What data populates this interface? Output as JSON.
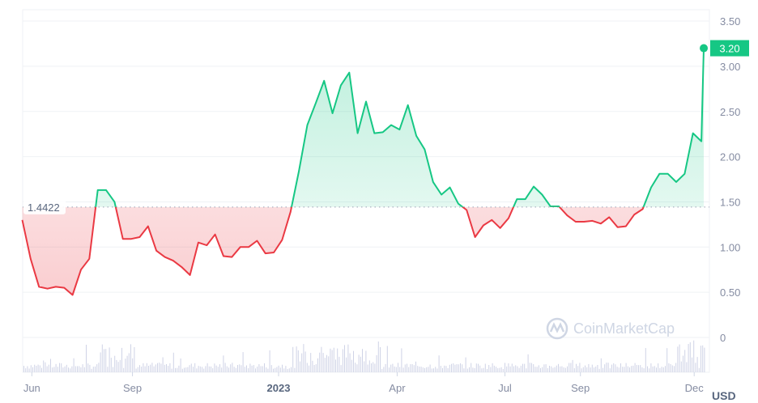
{
  "chart_data": {
    "type": "line",
    "title": "",
    "xlabel": "",
    "ylabel": "",
    "unit_label": "USD",
    "ylim": [
      0,
      3.5
    ],
    "y_ticks": [
      "0",
      "0.50",
      "1.00",
      "1.50",
      "2.00",
      "2.50",
      "3.00",
      "3.50"
    ],
    "x_ticks": [
      {
        "label": "Jun",
        "date": "2022-06-09",
        "bold": false
      },
      {
        "label": "Sep",
        "date": "2022-09-01",
        "bold": false
      },
      {
        "label": "2023",
        "date": "2023-01-01",
        "bold": true
      },
      {
        "label": "Apr",
        "date": "2023-04-10",
        "bold": false
      },
      {
        "label": "Jul",
        "date": "2023-07-09",
        "bold": false
      },
      {
        "label": "Sep",
        "date": "2023-09-10",
        "bold": false
      },
      {
        "label": "Dec",
        "date": "2023-12-14",
        "bold": false
      }
    ],
    "grid": true,
    "baseline": {
      "value": 1.4422,
      "label": "1.4422"
    },
    "current_price": {
      "value": 3.2,
      "label": "3.20"
    },
    "colors": {
      "up": "#16c784",
      "down": "#ea3943",
      "grid": "#eff2f5",
      "axis_text": "#858ca2",
      "volume": "#cfd3e6"
    },
    "watermark": "CoinMarketCap",
    "series": [
      {
        "x": [
          "2022-06-01",
          "2022-06-08",
          "2022-06-15",
          "2022-06-22",
          "2022-06-29",
          "2022-07-06",
          "2022-07-13",
          "2022-07-20",
          "2022-07-27",
          "2022-08-03",
          "2022-08-10",
          "2022-08-17",
          "2022-08-24",
          "2022-08-31",
          "2022-09-07",
          "2022-09-14",
          "2022-09-21",
          "2022-09-28",
          "2022-10-05",
          "2022-10-12",
          "2022-10-19",
          "2022-10-26",
          "2022-11-02",
          "2022-11-09",
          "2022-11-16",
          "2022-11-23",
          "2022-11-30",
          "2022-12-07",
          "2022-12-14",
          "2022-12-21",
          "2022-12-28",
          "2023-01-04",
          "2023-01-11",
          "2023-01-18",
          "2023-01-25",
          "2023-02-01",
          "2023-02-08",
          "2023-02-15",
          "2023-02-22",
          "2023-03-01",
          "2023-03-08",
          "2023-03-15",
          "2023-03-22",
          "2023-03-29",
          "2023-04-05",
          "2023-04-12",
          "2023-04-19",
          "2023-04-26",
          "2023-05-03",
          "2023-05-10",
          "2023-05-17",
          "2023-05-24",
          "2023-05-31",
          "2023-06-07",
          "2023-06-14",
          "2023-06-21",
          "2023-06-28",
          "2023-07-05",
          "2023-07-12",
          "2023-07-19",
          "2023-07-26",
          "2023-08-02",
          "2023-08-09",
          "2023-08-16",
          "2023-08-23",
          "2023-08-30",
          "2023-09-06",
          "2023-09-13",
          "2023-09-20",
          "2023-09-27",
          "2023-10-04",
          "2023-10-11",
          "2023-10-18",
          "2023-10-25",
          "2023-11-01",
          "2023-11-08",
          "2023-11-15",
          "2023-11-22",
          "2023-11-29",
          "2023-12-06",
          "2023-12-13",
          "2023-12-20",
          "2023-12-22"
        ],
        "y": [
          1.3,
          0.87,
          0.56,
          0.54,
          0.56,
          0.55,
          0.47,
          0.75,
          0.87,
          1.63,
          1.63,
          1.5,
          1.09,
          1.09,
          1.11,
          1.23,
          0.96,
          0.89,
          0.85,
          0.78,
          0.69,
          1.05,
          1.02,
          1.14,
          0.9,
          0.89,
          1.0,
          1.0,
          1.07,
          0.93,
          0.94,
          1.08,
          1.39,
          1.84,
          2.35,
          2.59,
          2.84,
          2.48,
          2.79,
          2.93,
          2.26,
          2.61,
          2.26,
          2.27,
          2.35,
          2.3,
          2.57,
          2.23,
          2.08,
          1.72,
          1.58,
          1.66,
          1.48,
          1.41,
          1.11,
          1.24,
          1.3,
          1.21,
          1.32,
          1.53,
          1.53,
          1.67,
          1.58,
          1.45,
          1.45,
          1.35,
          1.28,
          1.28,
          1.29,
          1.26,
          1.33,
          1.22,
          1.23,
          1.36,
          1.42,
          1.66,
          1.81,
          1.81,
          1.72,
          1.81,
          2.26,
          2.17,
          3.2
        ]
      }
    ]
  }
}
